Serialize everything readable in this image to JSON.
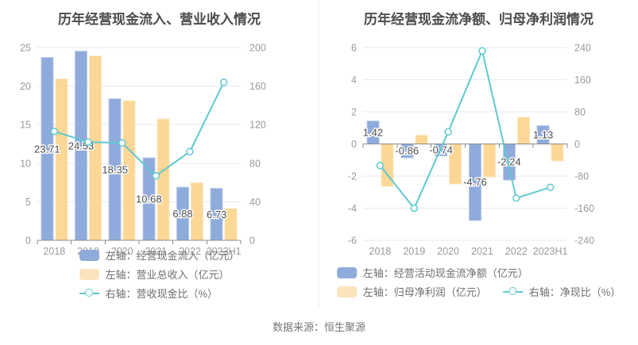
{
  "page": {
    "background": "#ffffff",
    "footer_source": "数据来源：恒生聚源"
  },
  "colors": {
    "bar_blue": "#8FABDB",
    "bar_blue_border": "#B9CAEA",
    "bar_yellow": "#FCD795",
    "bar_yellow_border": "#FDE7C3",
    "legend_yellow": "#FBE3BC",
    "line_teal": "#5FC9D1",
    "grid": "#E3EAF4",
    "axis_line": "#8C8C8C",
    "axis_text": "#9A9A9A",
    "title_text": "#4C4C4C",
    "bar_label_text": "#4D4D4D",
    "legend_text": "#6E6E6E",
    "footer_text": "#757575",
    "divider": "#ECECEC"
  },
  "chart_data": [
    {
      "type": "bar+line",
      "title": "历年经营现金流入、营业收入情况",
      "categories": [
        "2018",
        "2019",
        "2020",
        "2021",
        "2022",
        "2023H1"
      ],
      "left_axis": {
        "min": 0,
        "max": 25,
        "step": 5
      },
      "right_axis": {
        "min": 0,
        "max": 200,
        "step": 40
      },
      "grid": true,
      "legend_position": "bottom",
      "series": [
        {
          "kind": "bar",
          "axis": "left",
          "color": "blue",
          "legend": "左轴：经营现金流入（亿元）",
          "values": [
            23.71,
            24.53,
            18.35,
            10.68,
            6.88,
            6.73
          ],
          "show_labels": true
        },
        {
          "kind": "bar",
          "axis": "left",
          "color": "yellow",
          "legend": "左轴：营业总收入（亿元）",
          "values": [
            20.95,
            23.9,
            18.1,
            15.75,
            7.45,
            4.1
          ],
          "show_labels": false
        },
        {
          "kind": "line",
          "axis": "right",
          "color": "teal",
          "legend": "右轴：营收现金比（%）",
          "values": [
            113,
            102,
            101,
            67,
            92,
            164
          ],
          "show_labels": false
        }
      ],
      "legend_rows": [
        [
          0
        ],
        [
          1
        ],
        [
          2
        ]
      ]
    },
    {
      "type": "bar+line",
      "title": "历年经营现金流净额、归母净利润情况",
      "categories": [
        "2018",
        "2019",
        "2020",
        "2021",
        "2022",
        "2023H1"
      ],
      "left_axis": {
        "min": -6,
        "max": 6,
        "step": 2
      },
      "right_axis": {
        "min": -240,
        "max": 240,
        "step": 80
      },
      "grid": true,
      "legend_position": "bottom",
      "series": [
        {
          "kind": "bar",
          "axis": "left",
          "color": "blue",
          "legend": "左轴：经营活动现金流净额（亿元）",
          "values": [
            1.42,
            -0.86,
            -0.74,
            -4.76,
            -2.24,
            1.13
          ],
          "show_labels": true
        },
        {
          "kind": "bar",
          "axis": "left",
          "color": "yellow",
          "legend": "左轴：归母净利润（亿元）",
          "values": [
            -2.65,
            0.54,
            -2.5,
            -2.05,
            1.66,
            -1.05
          ],
          "show_labels": false
        },
        {
          "kind": "line",
          "axis": "right",
          "color": "teal",
          "legend": "右轴：净现比（%）",
          "values": [
            -54,
            -160,
            30,
            232,
            -135,
            -108
          ],
          "show_labels": false
        }
      ],
      "legend_rows": [
        [
          0
        ],
        [
          1,
          2
        ]
      ]
    }
  ]
}
